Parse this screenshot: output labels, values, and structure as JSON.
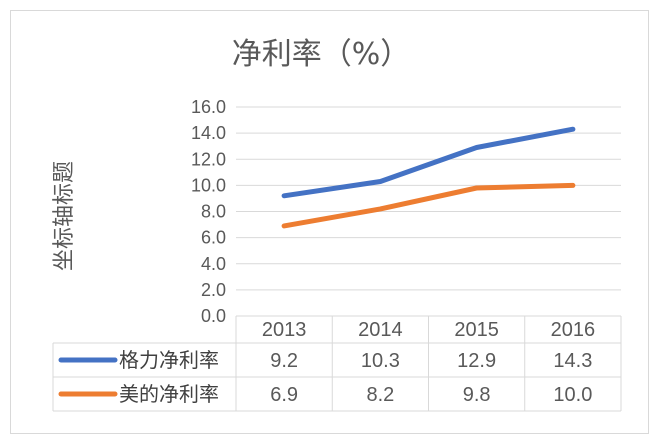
{
  "chart_data": {
    "type": "line",
    "title": "净利率（%）",
    "ylabel": "坐标轴标题",
    "xlabel": "",
    "categories": [
      "2013",
      "2014",
      "2015",
      "2016"
    ],
    "ylim": [
      0,
      16
    ],
    "yticks": [
      "0.0",
      "2.0",
      "4.0",
      "6.0",
      "8.0",
      "10.0",
      "12.0",
      "14.0",
      "16.0"
    ],
    "grid": true,
    "legend": "data-table",
    "series": [
      {
        "name": "格力净利率",
        "values": [
          9.2,
          10.3,
          12.9,
          14.3
        ],
        "labels": [
          "9.2",
          "10.3",
          "12.9",
          "14.3"
        ],
        "color": "#4472c4"
      },
      {
        "name": "美的净利率",
        "values": [
          6.9,
          8.2,
          9.8,
          10.0
        ],
        "labels": [
          "6.9",
          "8.2",
          "9.8",
          "10.0"
        ],
        "color": "#ed7d31"
      }
    ]
  }
}
